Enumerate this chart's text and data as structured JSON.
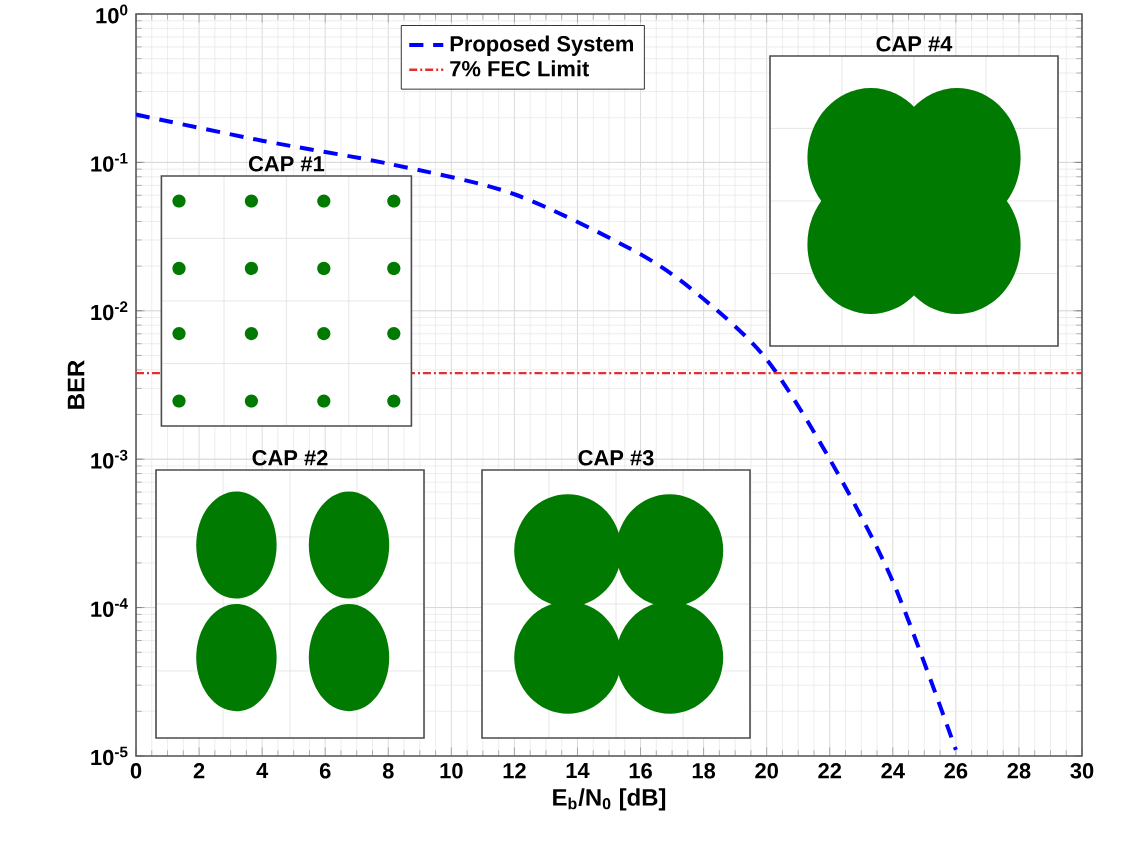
{
  "chart_data": {
    "type": "line",
    "xlabel": "E$_{b}$/N$_{0}$ [dB]",
    "ylabel": "BER",
    "xlim": [
      0,
      30
    ],
    "xticks": [
      0,
      2,
      4,
      6,
      8,
      10,
      12,
      14,
      16,
      18,
      20,
      22,
      24,
      26,
      28,
      30
    ],
    "ylim": [
      1e-05,
      1
    ],
    "yticks": [
      {
        "value": 1e-05,
        "label": "10$^{-5}$"
      },
      {
        "value": 0.0001,
        "label": "10$^{-4}$"
      },
      {
        "value": 0.001,
        "label": "10$^{-3}$"
      },
      {
        "value": 0.01,
        "label": "10$^{-2}$"
      },
      {
        "value": 0.1,
        "label": "10$^{-1}$"
      },
      {
        "value": 1,
        "label": "10$^{0}$"
      }
    ],
    "log": "y",
    "grid": true,
    "legend": "top",
    "line_style": "dashed",
    "marker": "none",
    "x": [
      0,
      4,
      8,
      12,
      16,
      18,
      20,
      22,
      24,
      26
    ],
    "series": [
      {
        "name": "Proposed System",
        "color": "#0000ff",
        "values": [
          0.21,
          0.14,
          0.098,
          0.061,
          0.024,
          0.012,
          0.0047,
          0.001,
          0.00015,
          1.1e-05
        ]
      }
    ],
    "ref_lines": [
      {
        "axis": "y",
        "value": 0.0038,
        "label": "7% FEC Limit",
        "color": "#e03030",
        "line_style": "dashdot"
      }
    ],
    "annotations": [
      "CAP #1",
      "CAP #2",
      "CAP #3",
      "CAP #4"
    ]
  }
}
